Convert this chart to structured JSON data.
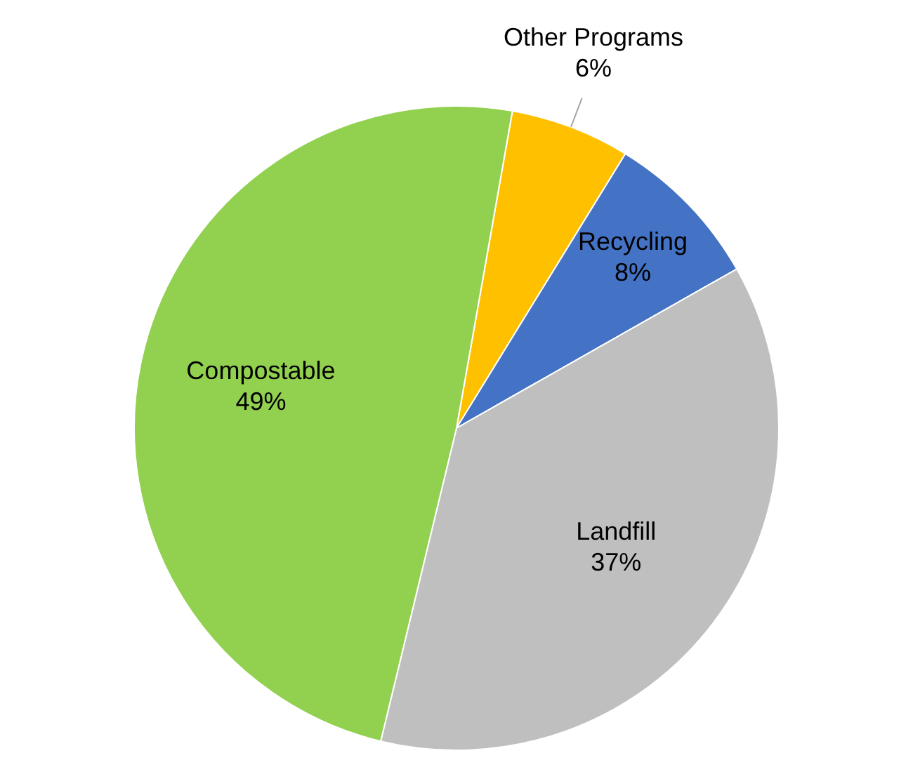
{
  "chart_data": {
    "type": "pie",
    "categories": [
      "Other Programs",
      "Recycling",
      "Landfill",
      "Compostable"
    ],
    "values": [
      6,
      8,
      37,
      49
    ],
    "value_labels": [
      "6%",
      "8%",
      "37%",
      "49%"
    ],
    "colors": [
      "#ffc000",
      "#4472c4",
      "#bfbfbf",
      "#92d050"
    ],
    "legend": false
  }
}
